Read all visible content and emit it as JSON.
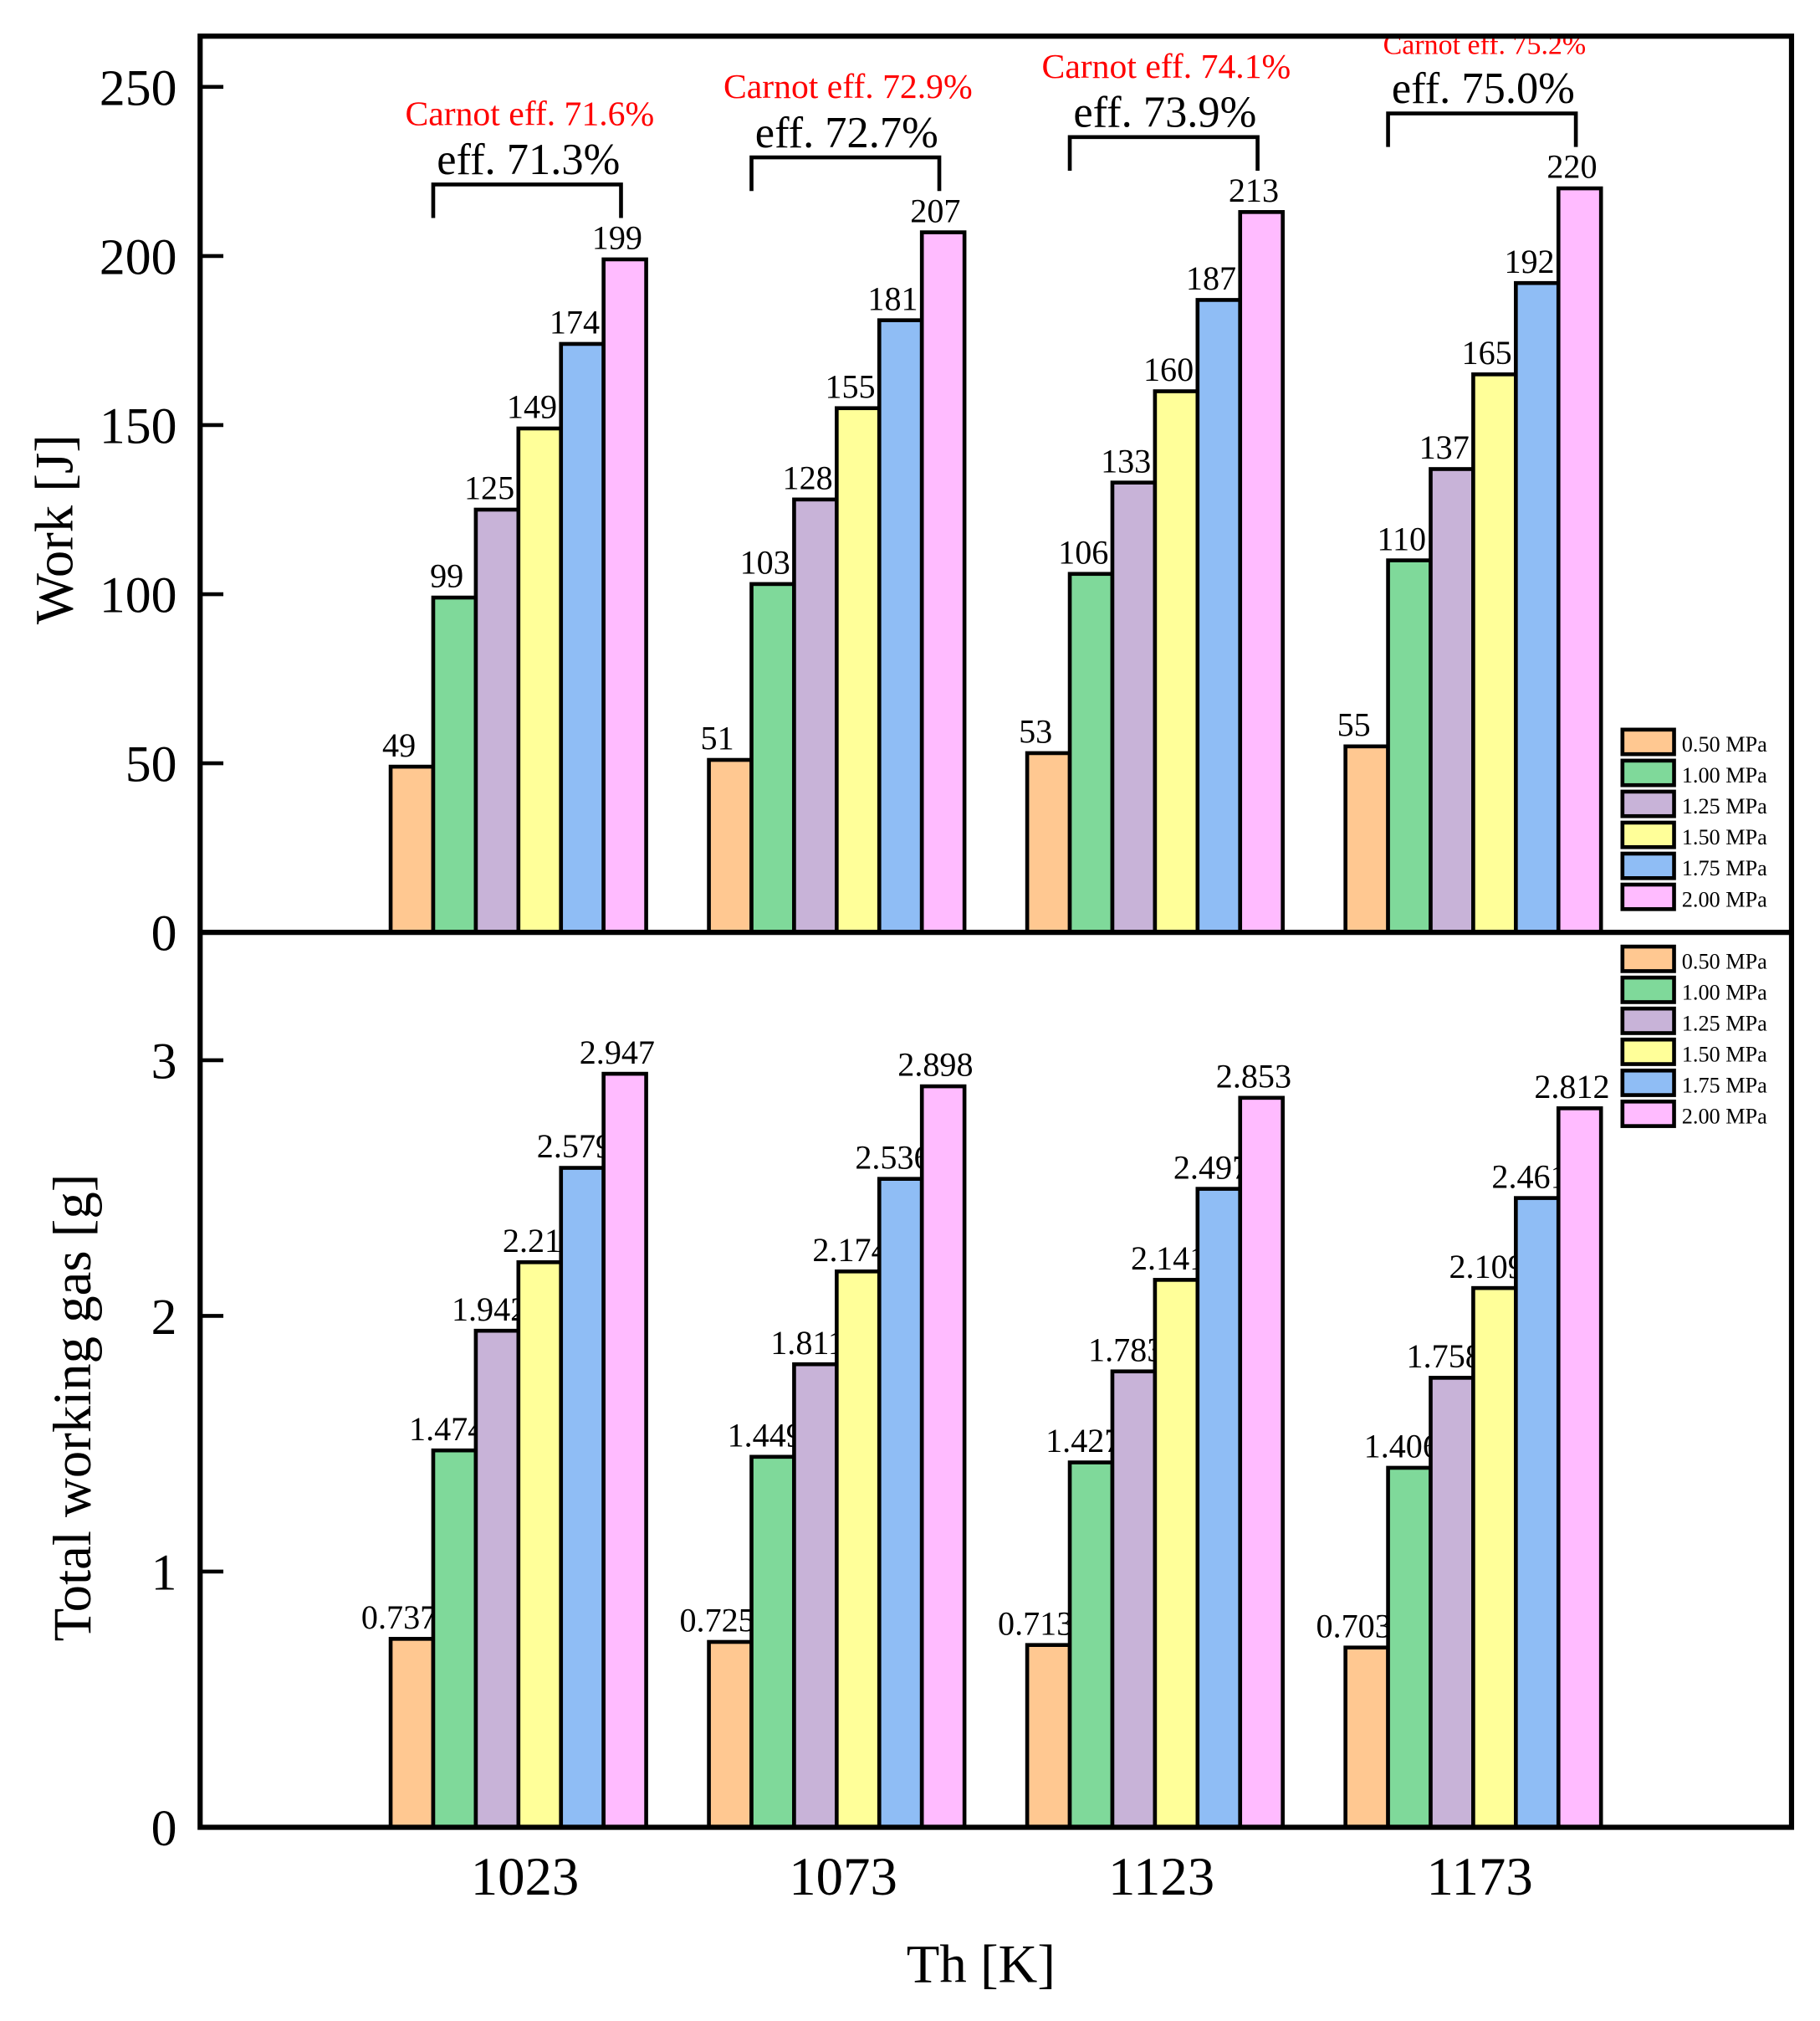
{
  "chart_data": [
    {
      "type": "bar",
      "panel": "top",
      "ylabel": "Work [J]",
      "ylim": [
        0,
        265
      ],
      "yticks": [
        "0",
        "50",
        "100",
        "150",
        "200",
        "250"
      ],
      "categories": [
        "1023",
        "1073",
        "1123",
        "1173"
      ],
      "series": [
        {
          "name": "0.50 MPa",
          "color": "#FFC891",
          "values": [
            49,
            51,
            53,
            55
          ],
          "labels": [
            "49",
            "51",
            "53",
            "55"
          ]
        },
        {
          "name": "1.00 MPa",
          "color": "#7FD99A",
          "values": [
            99,
            103,
            106,
            110
          ],
          "labels": [
            "99",
            "103",
            "106",
            "110"
          ]
        },
        {
          "name": "1.25 MPa",
          "color": "#C8B3D8",
          "values": [
            125,
            128,
            133,
            137
          ],
          "labels": [
            "125",
            "128",
            "133",
            "137"
          ]
        },
        {
          "name": "1.50 MPa",
          "color": "#FFFF99",
          "values": [
            149,
            155,
            160,
            165
          ],
          "labels": [
            "149",
            "155",
            "160",
            "165"
          ]
        },
        {
          "name": "1.75 MPa",
          "color": "#8FBDF5",
          "values": [
            174,
            181,
            187,
            192
          ],
          "labels": [
            "174",
            "181",
            "187",
            "192"
          ]
        },
        {
          "name": "2.00 MPa",
          "color": "#FFBBFF",
          "values": [
            199,
            207,
            213,
            220
          ],
          "labels": [
            "199",
            "207",
            "213",
            "220"
          ]
        }
      ],
      "annotations": [
        {
          "eff": "eff. 71.3%",
          "carnot": "Carnot eff. 71.6%"
        },
        {
          "eff": "eff. 72.7%",
          "carnot": "Carnot eff. 72.9%"
        },
        {
          "eff": "eff. 73.9%",
          "carnot": "Carnot eff. 74.1%"
        },
        {
          "eff": "eff. 75.0%",
          "carnot": "Carnot eff. 75.2%"
        }
      ],
      "legend": "bottom-right"
    },
    {
      "type": "bar",
      "panel": "bottom",
      "ylabel": "Total working gas [g]",
      "xlabel": "Th [K]",
      "ylim": [
        0,
        3.5
      ],
      "yticks": [
        "0",
        "1",
        "2",
        "3"
      ],
      "categories": [
        "1023",
        "1073",
        "1123",
        "1173"
      ],
      "series": [
        {
          "name": "0.50 MPa",
          "color": "#FFC891",
          "values": [
            0.737,
            0.725,
            0.713,
            0.703
          ],
          "labels": [
            "0.737",
            "0.725",
            "0.713",
            "0.703"
          ]
        },
        {
          "name": "1.00 MPa",
          "color": "#7FD99A",
          "values": [
            1.474,
            1.449,
            1.427,
            1.406
          ],
          "labels": [
            "1.474",
            "1.449",
            "1.427",
            "1.406"
          ]
        },
        {
          "name": "1.25 MPa",
          "color": "#C8B3D8",
          "values": [
            1.942,
            1.811,
            1.783,
            1.758
          ],
          "labels": [
            "1.942",
            "1.811",
            "1.783",
            "1.758"
          ]
        },
        {
          "name": "1.50 MPa",
          "color": "#FFFF99",
          "values": [
            2.21,
            2.174,
            2.141,
            2.109
          ],
          "labels": [
            "2.21",
            "2.174",
            "2.141",
            "2.109"
          ]
        },
        {
          "name": "1.75 MPa",
          "color": "#8FBDF5",
          "values": [
            2.579,
            2.536,
            2.497,
            2.461
          ],
          "labels": [
            "2.579",
            "2.536",
            "2.497",
            "2.461"
          ]
        },
        {
          "name": "2.00 MPa",
          "color": "#FFBBFF",
          "values": [
            2.947,
            2.898,
            2.853,
            2.812
          ],
          "labels": [
            "2.947",
            "2.898",
            "2.853",
            "2.812"
          ]
        }
      ],
      "legend": "top-right"
    }
  ],
  "colors": {
    "annotation_red": "#FF0000"
  }
}
